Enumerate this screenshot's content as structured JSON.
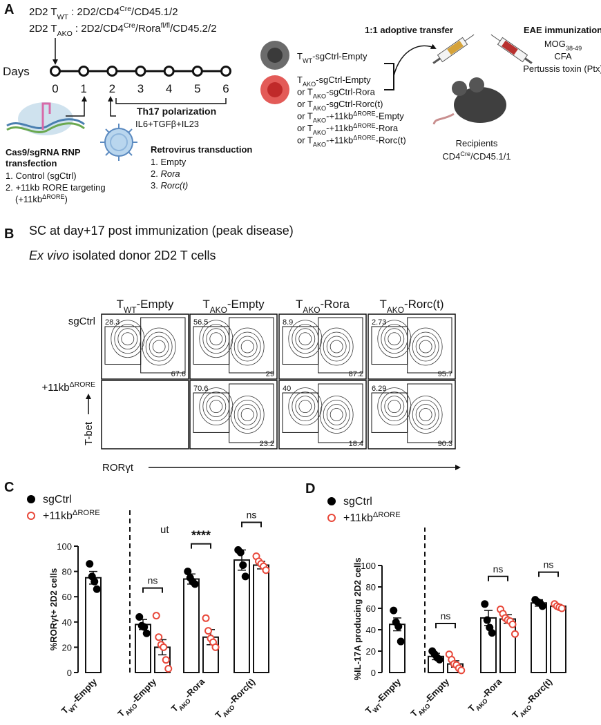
{
  "panel_a": {
    "label": "A",
    "genotype_wt": [
      "2D2 T",
      "WT",
      " : 2D2/CD4",
      "Cre",
      "/CD45.1/2"
    ],
    "genotype_ako": [
      "2D2 T",
      "AKO",
      " : 2D2/CD4",
      "Cre",
      "/Rora",
      "fl/fl",
      "/CD45.2/2"
    ],
    "days_label": "Days",
    "days": [
      0,
      1,
      2,
      3,
      4,
      5,
      6
    ],
    "transfection_title": [
      "Cas9/sgRNA RNP",
      "transfection"
    ],
    "transfection_items": [
      "1. Control (sgCtrl)",
      "2. +11kb RORE targeting",
      "(+11kbΔRORE)"
    ],
    "polarization_title": "Th17 polarization",
    "polarization_cytokines": "IL6+TGFβ+IL23",
    "transduction_title": "Retrovirus transduction",
    "transduction_items": [
      [
        "1. ",
        "Empty"
      ],
      [
        "2. ",
        "Rora"
      ],
      [
        "3. ",
        "Rorc(t)"
      ]
    ],
    "groups_wt": "TWT-sgCtrl-Empty",
    "groups_ako": [
      "TAKO-sgCtrl-Empty",
      "or TAKO-sgCtrl-Rora",
      "or TAKO-sgCtrl-Rorc(t)",
      "or TAKO-+11kbΔRORE-Empty",
      "or TAKO-+11kbΔRORE-Rora",
      "or TAKO-+11kbΔRORE-Rorc(t)"
    ],
    "transfer": "1:1 adoptive transfer",
    "immunization_title": "EAE immunization",
    "mog": [
      "MOG",
      "38-49"
    ],
    "immunization_items": [
      "CFA",
      "Pertussis toxin (Ptx)"
    ],
    "recipients": "Recipients",
    "recipients_genotype": [
      "CD4",
      "Cre",
      "/CD45.1/1"
    ]
  },
  "panel_b": {
    "label": "B",
    "title": "SC at day+17 post immunization (peak disease)",
    "subtitle": [
      "Ex vivo",
      " isolated donor 2D2 T cells"
    ],
    "columns": [
      "TWT-Empty",
      "TAKO-Empty",
      "TAKO-Rora",
      "TAKO-Rorc(t)"
    ],
    "rows": [
      "sgCtrl",
      "+11kbΔRORE"
    ],
    "y_axis": "T-bet",
    "x_axis": "RORγt",
    "quadrants": [
      [
        [
          28.3,
          67.6
        ],
        [
          56.5,
          29
        ],
        [
          8.9,
          87.2
        ],
        [
          2.73,
          95.7
        ]
      ],
      [
        null,
        [
          70.6,
          23.2
        ],
        [
          40,
          18.4
        ],
        [
          6.29,
          90.3
        ]
      ]
    ]
  },
  "chart_data": [
    {
      "type": "bar",
      "panel": "C",
      "ylabel": "%RORγt+ 2D2 cells",
      "note": "ut",
      "categories": [
        "TWT-Empty",
        "TAKO-Empty",
        "TAKO-Rora",
        "TAKO-Rorc(t)"
      ],
      "series": [
        {
          "name": "sgCtrl",
          "color": "#000000",
          "values": [
            75,
            38,
            74,
            89
          ],
          "errors": [
            5,
            4,
            4,
            8
          ],
          "points": [
            [
              86,
              76,
              72,
              66
            ],
            [
              44,
              37,
              36,
              31
            ],
            [
              80,
              75,
              72,
              70
            ],
            [
              97,
              95,
              85,
              76
            ]
          ]
        },
        {
          "name": "+11kbΔRORE",
          "color": "#e8483a",
          "values": [
            null,
            20,
            28,
            85
          ],
          "errors": [
            null,
            6,
            6,
            3
          ],
          "points": [
            [],
            [
              45,
              28,
              22,
              20,
              10,
              3
            ],
            [
              43,
              33,
              27,
              24,
              20
            ],
            [
              92,
              88,
              86,
              84,
              81
            ]
          ]
        }
      ],
      "annotations": [
        null,
        "ns",
        "****",
        "ns"
      ],
      "ylim": [
        0,
        100
      ],
      "yticks": [
        0,
        20,
        40,
        60,
        80,
        100
      ]
    },
    {
      "type": "bar",
      "panel": "D",
      "ylabel": "%IL-17A producing  2D2 cells",
      "categories": [
        "TWT-Empty",
        "TAKO-Empty",
        "TAKO-Rora",
        "TAKO-Rorc(t)"
      ],
      "series": [
        {
          "name": "sgCtrl",
          "color": "#000000",
          "values": [
            45,
            15,
            51,
            65
          ],
          "errors": [
            6,
            3,
            7,
            3
          ],
          "points": [
            [
              58,
              47,
              43,
              29
            ],
            [
              20,
              17,
              14,
              12
            ],
            [
              64,
              49,
              42,
              37
            ],
            [
              68,
              66,
              65,
              62
            ]
          ]
        },
        {
          "name": "+11kbΔRORE",
          "color": "#e8483a",
          "values": [
            null,
            8,
            50,
            62
          ],
          "errors": [
            null,
            3,
            4,
            1.5
          ],
          "points": [
            [],
            [
              17,
              12,
              8,
              7,
              4,
              2
            ],
            [
              59,
              55,
              51,
              49,
              48,
              45,
              36
            ],
            [
              64,
              62,
              61,
              60
            ]
          ]
        }
      ],
      "annotations": [
        null,
        "ns",
        "ns",
        "ns"
      ],
      "ylim": [
        0,
        100
      ],
      "yticks": [
        0,
        20,
        40,
        60,
        80,
        100
      ]
    }
  ]
}
